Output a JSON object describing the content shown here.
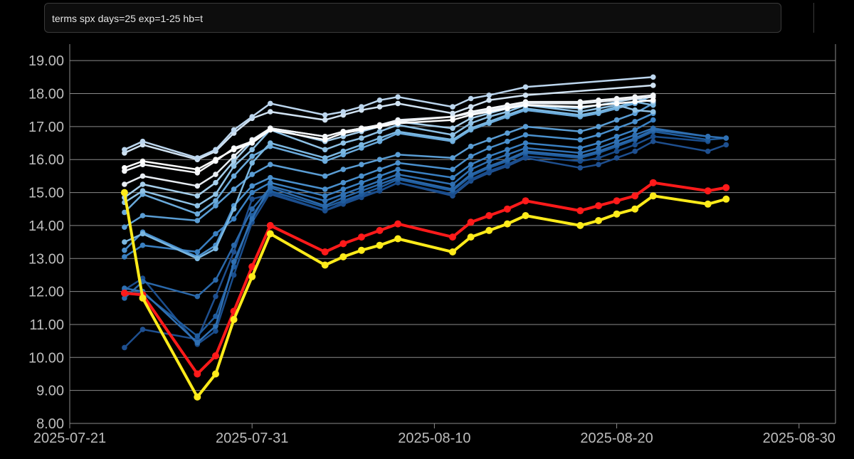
{
  "command": {
    "text": "terms spx days=25 exp=1-25 hb=t"
  },
  "chart_data": {
    "type": "line",
    "title": "",
    "xlabel": "",
    "ylabel": "",
    "ylim": [
      8,
      19.5
    ],
    "xlim": [
      "2025-07-21",
      "2025-09-01"
    ],
    "y_ticks": [
      "8.00",
      "9.00",
      "10.00",
      "11.00",
      "12.00",
      "13.00",
      "14.00",
      "15.00",
      "16.00",
      "17.00",
      "18.00",
      "19.00"
    ],
    "x_ticks": [
      "2025-07-21",
      "2025-07-31",
      "2025-08-10",
      "2025-08-20",
      "2025-08-30"
    ],
    "grid": true,
    "x": [
      "2025-07-24",
      "2025-07-25",
      "2025-07-28",
      "2025-07-29",
      "2025-07-30",
      "2025-07-31",
      "2025-08-01",
      "2025-08-04",
      "2025-08-05",
      "2025-08-06",
      "2025-08-07",
      "2025-08-08",
      "2025-08-11",
      "2025-08-12",
      "2025-08-13",
      "2025-08-14",
      "2025-08-15",
      "2025-08-18",
      "2025-08-19",
      "2025-08-20",
      "2025-08-21",
      "2025-08-22",
      "2025-08-25",
      "2025-08-26"
    ],
    "series": [
      {
        "color": "#1e4f8f",
        "values": [
          10.3,
          10.85,
          10.55,
          11.85,
          13.2,
          14.8,
          14.95,
          14.45,
          14.7,
          14.9,
          15.05,
          15.3,
          14.9,
          15.35,
          15.6,
          15.8,
          16.05,
          15.75,
          15.85,
          16.05,
          16.25,
          16.55,
          16.25,
          16.45
        ]
      },
      {
        "color": "#1a4d8c",
        "values": [
          12.05,
          12.4,
          10.4,
          10.8,
          12.5,
          14.1,
          15.0,
          14.45,
          14.65,
          14.85,
          15.05,
          15.3,
          14.95,
          15.4,
          15.65,
          15.85,
          16.1,
          15.95,
          16.05,
          16.25,
          16.45,
          16.7,
          16.55,
          null
        ]
      },
      {
        "color": "#1f5c9e",
        "values": [
          11.95,
          11.95,
          10.65,
          11.25,
          12.75,
          14.3,
          15.05,
          14.55,
          14.75,
          14.95,
          15.15,
          15.4,
          15.05,
          15.5,
          15.75,
          15.95,
          16.2,
          16.05,
          16.2,
          16.4,
          16.6,
          16.85,
          16.6,
          16.65
        ]
      },
      {
        "color": "#2a68aa",
        "values": [
          11.8,
          12.3,
          11.85,
          12.35,
          13.4,
          14.5,
          15.15,
          14.6,
          14.85,
          15.05,
          15.25,
          15.45,
          15.1,
          15.55,
          15.8,
          16.0,
          16.25,
          16.1,
          16.25,
          16.45,
          16.65,
          16.9,
          16.7,
          null
        ]
      },
      {
        "color": "#2f70b3",
        "values": [
          12.1,
          12.0,
          10.45,
          10.95,
          12.9,
          14.2,
          15.2,
          14.75,
          14.95,
          15.15,
          15.35,
          15.55,
          15.25,
          15.7,
          15.95,
          16.15,
          16.35,
          16.2,
          16.35,
          16.55,
          16.75,
          16.95,
          16.7,
          16.65
        ]
      },
      {
        "color": "#3a80c2",
        "values": [
          13.05,
          13.4,
          13.2,
          13.75,
          14.2,
          15.0,
          15.3,
          14.9,
          15.1,
          15.3,
          15.5,
          15.7,
          15.45,
          15.85,
          16.1,
          16.3,
          16.5,
          16.35,
          16.5,
          16.7,
          16.9,
          17.2,
          null,
          null
        ]
      },
      {
        "color": "#4a90cd",
        "values": [
          13.25,
          13.8,
          13.05,
          13.4,
          14.6,
          15.2,
          15.45,
          15.1,
          15.3,
          15.5,
          15.7,
          15.9,
          15.7,
          16.1,
          16.35,
          16.55,
          16.75,
          16.6,
          16.75,
          16.95,
          17.15,
          17.4,
          null,
          null
        ]
      },
      {
        "color": "#5a9dd4",
        "values": [
          13.95,
          14.3,
          14.15,
          14.6,
          15.1,
          15.55,
          15.85,
          15.5,
          15.7,
          15.85,
          16.0,
          16.15,
          16.05,
          16.4,
          16.6,
          16.8,
          17.0,
          16.85,
          17.0,
          17.2,
          17.4,
          17.7,
          null,
          null
        ]
      },
      {
        "color": "#6aaadb",
        "values": [
          14.4,
          14.95,
          14.35,
          14.75,
          15.5,
          16.1,
          16.4,
          15.95,
          16.15,
          16.35,
          16.55,
          16.8,
          16.55,
          16.9,
          17.1,
          17.3,
          17.5,
          17.3,
          17.4,
          17.55,
          17.7,
          17.95,
          null,
          null
        ]
      },
      {
        "color": "#7ab7e1",
        "values": [
          13.5,
          13.75,
          13.0,
          13.3,
          14.5,
          15.9,
          16.5,
          16.05,
          16.25,
          16.45,
          16.65,
          16.85,
          16.6,
          16.95,
          17.15,
          17.35,
          17.55,
          17.35,
          17.45,
          17.6,
          17.75,
          17.65,
          null,
          null
        ]
      },
      {
        "color": "#8fc2e6",
        "values": [
          14.7,
          15.05,
          14.6,
          14.95,
          15.8,
          16.3,
          16.9,
          16.3,
          16.5,
          16.65,
          16.85,
          17.05,
          16.75,
          17.1,
          17.3,
          17.45,
          17.65,
          17.45,
          17.55,
          17.65,
          17.5,
          17.45,
          null,
          null
        ]
      },
      {
        "color": "#a6cfec",
        "values": [
          14.85,
          15.25,
          14.9,
          15.3,
          15.95,
          16.55,
          16.95,
          16.55,
          16.7,
          16.85,
          17.0,
          17.15,
          16.95,
          17.25,
          17.4,
          17.55,
          17.65,
          17.55,
          17.65,
          17.75,
          17.85,
          17.75,
          null,
          null
        ]
      },
      {
        "color": "#e8edf3",
        "values": [
          15.25,
          15.5,
          15.2,
          15.55,
          16.1,
          16.6,
          16.95,
          16.7,
          16.85,
          16.95,
          17.05,
          17.2,
          17.3,
          17.4,
          17.5,
          17.6,
          17.7,
          17.7,
          17.75,
          17.8,
          17.85,
          17.9,
          null,
          null
        ]
      },
      {
        "color": "#f4f6f8",
        "values": [
          15.65,
          15.85,
          15.6,
          15.95,
          16.35,
          16.55,
          16.95,
          16.7,
          16.85,
          16.95,
          17.05,
          17.15,
          17.3,
          17.45,
          17.55,
          17.65,
          17.75,
          17.75,
          17.8,
          17.85,
          17.9,
          17.95,
          null,
          null
        ]
      },
      {
        "color": "#ffffff",
        "values": [
          15.75,
          15.95,
          15.7,
          16.0,
          16.3,
          16.5,
          16.9,
          16.6,
          16.8,
          16.9,
          17.0,
          17.1,
          17.2,
          17.35,
          17.45,
          17.55,
          17.65,
          17.6,
          17.65,
          17.7,
          17.75,
          17.8,
          null,
          null
        ]
      },
      {
        "color": "#d0e2f2",
        "values": [
          16.2,
          16.45,
          16.0,
          16.25,
          16.8,
          17.25,
          17.45,
          17.2,
          17.35,
          17.5,
          17.6,
          17.7,
          17.4,
          17.6,
          17.8,
          null,
          17.95,
          null,
          null,
          null,
          null,
          18.25,
          null,
          null
        ]
      },
      {
        "color": "#bcd6ee",
        "values": [
          16.3,
          16.55,
          16.05,
          16.3,
          16.9,
          17.3,
          17.7,
          17.35,
          17.45,
          17.6,
          17.8,
          17.9,
          17.6,
          17.85,
          17.95,
          null,
          18.2,
          null,
          null,
          null,
          null,
          18.5,
          null,
          null
        ]
      },
      {
        "color": "#ff1a1a",
        "values": [
          11.95,
          11.9,
          9.5,
          10.05,
          11.4,
          12.75,
          14.0,
          13.2,
          13.45,
          13.65,
          13.85,
          14.05,
          13.65,
          14.1,
          14.3,
          14.5,
          14.75,
          14.45,
          14.6,
          14.75,
          14.9,
          15.3,
          15.05,
          15.15
        ]
      },
      {
        "color": "#ffeb1a",
        "values": [
          15.0,
          11.8,
          8.8,
          9.5,
          11.15,
          12.45,
          13.75,
          12.8,
          13.05,
          13.25,
          13.4,
          13.6,
          13.2,
          13.65,
          13.85,
          14.05,
          14.3,
          14.0,
          14.15,
          14.35,
          14.5,
          14.9,
          14.65,
          14.8
        ]
      }
    ]
  }
}
